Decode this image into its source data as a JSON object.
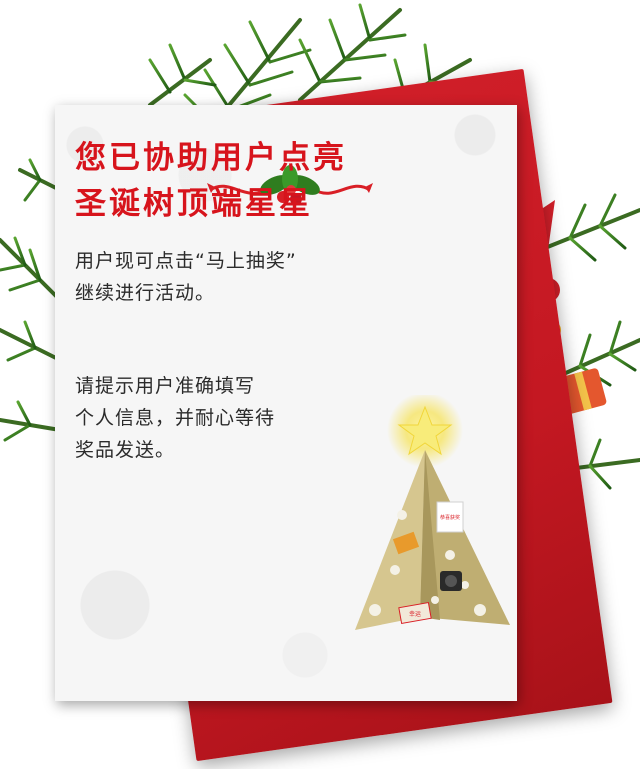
{
  "headline": {
    "line1": "您已协助用户点亮",
    "line2": "圣诞树顶端星星"
  },
  "paragraph1": {
    "line1": "用户现可点击“马上抽奖”",
    "line2": "继续进行活动。"
  },
  "paragraph2": {
    "line1": "请提示用户准确填写",
    "line2": "个人信息，并耐心等待",
    "line3": "奖品发送。"
  },
  "tree_tags": {
    "tag1": "恭喜获奖",
    "tag2": "幸运"
  },
  "colors": {
    "headline": "#d7141c",
    "red_card": "#c41822",
    "pine": "#2f7d1f",
    "tree": "#c8b57a",
    "ribbon": "#d91f26"
  }
}
